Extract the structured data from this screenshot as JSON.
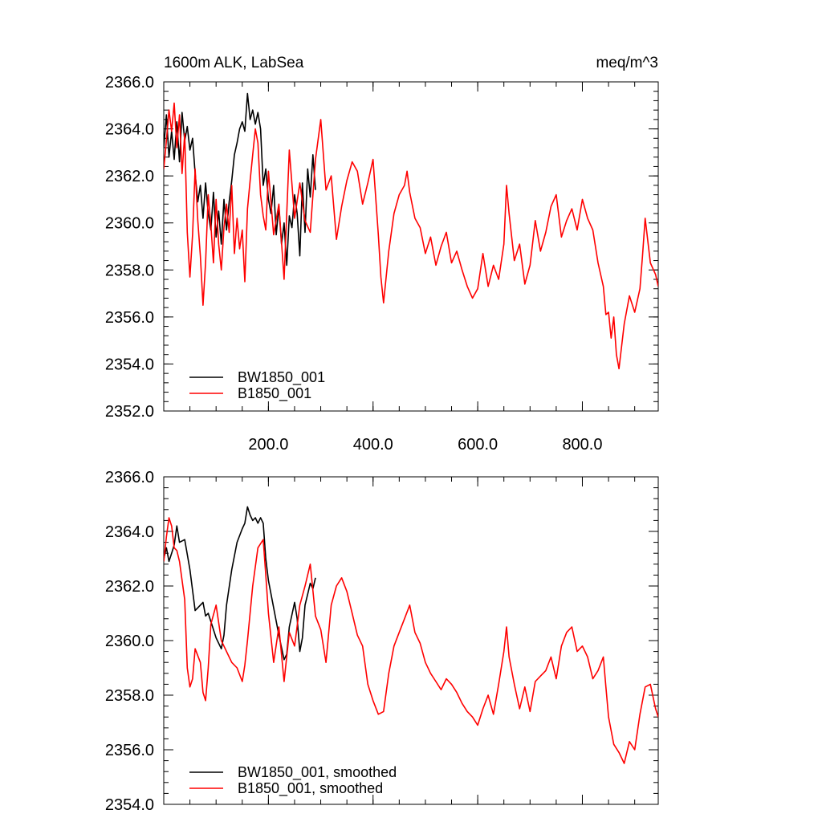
{
  "chart_data": [
    {
      "type": "line",
      "title_left": "1600m ALK, LabSea",
      "title_right": "meq/m^3",
      "xlabel": "",
      "ylabel": "",
      "xlim": [
        0,
        945
      ],
      "ylim": [
        2352,
        2366
      ],
      "x_ticks": [
        200,
        400,
        600,
        800
      ],
      "x_tick_labels": [
        "200.0",
        "400.0",
        "600.0",
        "800.0"
      ],
      "y_ticks": [
        2352,
        2354,
        2356,
        2358,
        2360,
        2362,
        2364,
        2366
      ],
      "y_tick_labels": [
        "2352.0",
        "2354.0",
        "2356.0",
        "2358.0",
        "2360.0",
        "2362.0",
        "2364.0",
        "2366.0"
      ],
      "legend_position": "bottom-left",
      "series": [
        {
          "name": "BW1850_001",
          "color": "#000000",
          "x": [
            0,
            5,
            10,
            15,
            20,
            25,
            30,
            35,
            40,
            45,
            50,
            55,
            60,
            65,
            70,
            75,
            80,
            85,
            90,
            95,
            100,
            105,
            110,
            115,
            120,
            125,
            130,
            135,
            140,
            145,
            150,
            155,
            160,
            165,
            170,
            175,
            180,
            185,
            190,
            195,
            200,
            205,
            210,
            215,
            220,
            225,
            230,
            235,
            240,
            245,
            250,
            255,
            260,
            265,
            270,
            275,
            280,
            285,
            290
          ],
          "values": [
            2363.2,
            2364.6,
            2362.8,
            2363.9,
            2362.7,
            2364.3,
            2362.6,
            2364.7,
            2363.5,
            2364.1,
            2363.1,
            2363.6,
            2362.1,
            2360.9,
            2361.6,
            2360.2,
            2361.7,
            2360.4,
            2359.7,
            2361.3,
            2359.4,
            2360.5,
            2359.1,
            2361.0,
            2359.7,
            2360.9,
            2361.8,
            2362.9,
            2363.4,
            2364.0,
            2364.3,
            2363.9,
            2365.5,
            2364.4,
            2364.8,
            2364.2,
            2364.7,
            2364.0,
            2361.6,
            2362.3,
            2361.0,
            2360.4,
            2361.6,
            2359.5,
            2360.7,
            2359.1,
            2360.0,
            2358.2,
            2360.3,
            2359.8,
            2361.2,
            2360.4,
            2358.6,
            2361.7,
            2359.6,
            2362.3,
            2361.1,
            2362.9,
            2361.4
          ]
        },
        {
          "name": "B1850_001",
          "color": "#ff0000",
          "x": [
            0,
            5,
            10,
            15,
            20,
            25,
            30,
            35,
            40,
            45,
            50,
            55,
            60,
            65,
            70,
            75,
            80,
            85,
            90,
            95,
            100,
            105,
            110,
            115,
            120,
            125,
            130,
            135,
            140,
            145,
            150,
            155,
            160,
            165,
            170,
            175,
            180,
            185,
            190,
            195,
            200,
            210,
            220,
            230,
            240,
            250,
            260,
            270,
            280,
            290,
            300,
            310,
            320,
            330,
            340,
            350,
            360,
            370,
            380,
            390,
            400,
            410,
            415,
            420,
            430,
            440,
            450,
            460,
            465,
            470,
            480,
            490,
            500,
            510,
            520,
            530,
            540,
            550,
            560,
            570,
            580,
            590,
            600,
            610,
            620,
            630,
            640,
            650,
            655,
            660,
            670,
            680,
            690,
            700,
            710,
            720,
            730,
            740,
            750,
            760,
            770,
            780,
            790,
            800,
            810,
            820,
            830,
            840,
            845,
            850,
            855,
            860,
            865,
            870,
            880,
            890,
            900,
            910,
            915,
            920,
            930,
            940,
            945
          ],
          "values": [
            2362.3,
            2363.5,
            2364.8,
            2363.9,
            2365.1,
            2363.2,
            2364.6,
            2362.1,
            2363.8,
            2359.6,
            2357.7,
            2359.5,
            2362.3,
            2360.1,
            2358.6,
            2356.5,
            2358.3,
            2361.2,
            2359.9,
            2358.3,
            2361.0,
            2359.1,
            2358.0,
            2359.8,
            2360.8,
            2359.6,
            2361.6,
            2358.7,
            2360.2,
            2358.9,
            2359.7,
            2357.5,
            2360.6,
            2361.8,
            2362.9,
            2364.0,
            2363.4,
            2361.2,
            2360.3,
            2359.7,
            2362.2,
            2359.5,
            2360.8,
            2357.6,
            2363.1,
            2360.2,
            2361.7,
            2360.1,
            2359.6,
            2362.7,
            2364.4,
            2361.4,
            2362.0,
            2359.3,
            2360.7,
            2361.8,
            2362.6,
            2362.2,
            2360.8,
            2361.7,
            2362.7,
            2359.5,
            2357.7,
            2356.6,
            2358.8,
            2360.4,
            2361.2,
            2361.6,
            2362.2,
            2361.3,
            2360.2,
            2359.8,
            2358.7,
            2359.4,
            2358.2,
            2359.0,
            2359.6,
            2358.3,
            2358.8,
            2358.0,
            2357.3,
            2356.8,
            2357.2,
            2358.7,
            2357.3,
            2358.2,
            2357.6,
            2359.1,
            2361.6,
            2360.4,
            2358.4,
            2359.1,
            2357.4,
            2358.2,
            2360.1,
            2358.8,
            2359.6,
            2360.7,
            2361.2,
            2359.4,
            2360.1,
            2360.6,
            2359.7,
            2361.0,
            2360.2,
            2359.7,
            2358.3,
            2357.3,
            2356.1,
            2356.2,
            2355.1,
            2356.0,
            2354.4,
            2353.8,
            2355.7,
            2356.9,
            2356.2,
            2357.2,
            2358.6,
            2360.2,
            2358.3,
            2357.8,
            2357.3
          ]
        }
      ]
    },
    {
      "type": "line",
      "title_left": "",
      "title_right": "",
      "xlabel": "",
      "ylabel": "",
      "xlim": [
        0,
        945
      ],
      "ylim": [
        2354,
        2366
      ],
      "x_ticks": [
        200,
        400,
        600,
        800
      ],
      "x_tick_labels": [],
      "y_ticks": [
        2354,
        2356,
        2358,
        2360,
        2362,
        2364,
        2366
      ],
      "y_tick_labels": [
        "2354.0",
        "2356.0",
        "2358.0",
        "2360.0",
        "2362.0",
        "2364.0",
        "2366.0"
      ],
      "legend_position": "bottom-left",
      "series": [
        {
          "name": "BW1850_001, smoothed",
          "color": "#000000",
          "x": [
            0,
            5,
            10,
            15,
            20,
            25,
            30,
            40,
            50,
            60,
            65,
            70,
            75,
            80,
            85,
            90,
            100,
            110,
            115,
            120,
            130,
            140,
            150,
            155,
            160,
            165,
            170,
            175,
            180,
            185,
            190,
            195,
            200,
            210,
            220,
            230,
            235,
            240,
            250,
            255,
            260,
            265,
            270,
            275,
            280,
            285,
            290
          ],
          "values": [
            2363.0,
            2363.4,
            2362.9,
            2363.2,
            2363.5,
            2364.2,
            2363.6,
            2363.7,
            2362.6,
            2361.1,
            2361.2,
            2361.3,
            2361.4,
            2360.9,
            2361.0,
            2360.7,
            2360.1,
            2359.7,
            2360.2,
            2361.3,
            2362.6,
            2363.6,
            2364.1,
            2364.3,
            2364.9,
            2364.6,
            2364.4,
            2364.5,
            2364.3,
            2364.5,
            2364.3,
            2363.0,
            2362.2,
            2361.2,
            2360.2,
            2359.3,
            2359.5,
            2360.5,
            2361.4,
            2360.8,
            2359.6,
            2360.1,
            2361.3,
            2361.7,
            2362.1,
            2361.9,
            2362.3
          ]
        },
        {
          "name": "B1850_001, smoothed",
          "color": "#ff0000",
          "x": [
            0,
            5,
            10,
            15,
            20,
            25,
            30,
            40,
            45,
            50,
            55,
            60,
            70,
            75,
            80,
            85,
            90,
            100,
            110,
            120,
            130,
            140,
            150,
            155,
            160,
            170,
            180,
            190,
            195,
            200,
            210,
            220,
            230,
            240,
            250,
            260,
            270,
            280,
            290,
            300,
            310,
            320,
            330,
            340,
            350,
            360,
            370,
            380,
            390,
            400,
            410,
            420,
            430,
            440,
            450,
            460,
            470,
            480,
            490,
            500,
            510,
            520,
            530,
            540,
            550,
            560,
            570,
            580,
            590,
            600,
            610,
            620,
            630,
            640,
            650,
            655,
            660,
            670,
            680,
            690,
            700,
            710,
            720,
            730,
            740,
            750,
            760,
            770,
            780,
            790,
            800,
            810,
            820,
            830,
            840,
            845,
            850,
            860,
            870,
            880,
            890,
            900,
            910,
            920,
            930,
            940,
            945
          ],
          "values": [
            2362.9,
            2363.8,
            2364.5,
            2364.2,
            2363.4,
            2363.3,
            2362.9,
            2361.5,
            2359.0,
            2358.3,
            2358.6,
            2359.7,
            2359.2,
            2358.1,
            2357.8,
            2359.0,
            2360.6,
            2361.3,
            2360.0,
            2359.6,
            2359.2,
            2359.0,
            2358.5,
            2359.1,
            2360.0,
            2362.0,
            2363.4,
            2363.7,
            2362.4,
            2361.0,
            2359.2,
            2360.5,
            2358.5,
            2360.3,
            2359.8,
            2361.3,
            2362.0,
            2362.8,
            2360.9,
            2360.4,
            2359.2,
            2361.3,
            2362.0,
            2362.3,
            2361.8,
            2361.0,
            2360.2,
            2359.8,
            2358.4,
            2357.8,
            2357.3,
            2357.4,
            2358.8,
            2359.8,
            2360.3,
            2360.8,
            2361.3,
            2360.3,
            2359.9,
            2359.2,
            2358.8,
            2358.5,
            2358.2,
            2358.6,
            2358.4,
            2358.1,
            2357.7,
            2357.4,
            2357.2,
            2356.9,
            2357.5,
            2358.0,
            2357.3,
            2358.4,
            2359.6,
            2360.5,
            2359.4,
            2358.4,
            2357.5,
            2358.3,
            2357.4,
            2358.5,
            2358.7,
            2358.9,
            2359.4,
            2358.6,
            2359.8,
            2360.3,
            2360.5,
            2359.6,
            2359.8,
            2359.4,
            2358.6,
            2358.9,
            2359.4,
            2358.3,
            2357.2,
            2356.2,
            2355.9,
            2355.5,
            2356.3,
            2356.0,
            2357.3,
            2358.3,
            2358.4,
            2357.5,
            2357.2
          ]
        }
      ]
    }
  ]
}
